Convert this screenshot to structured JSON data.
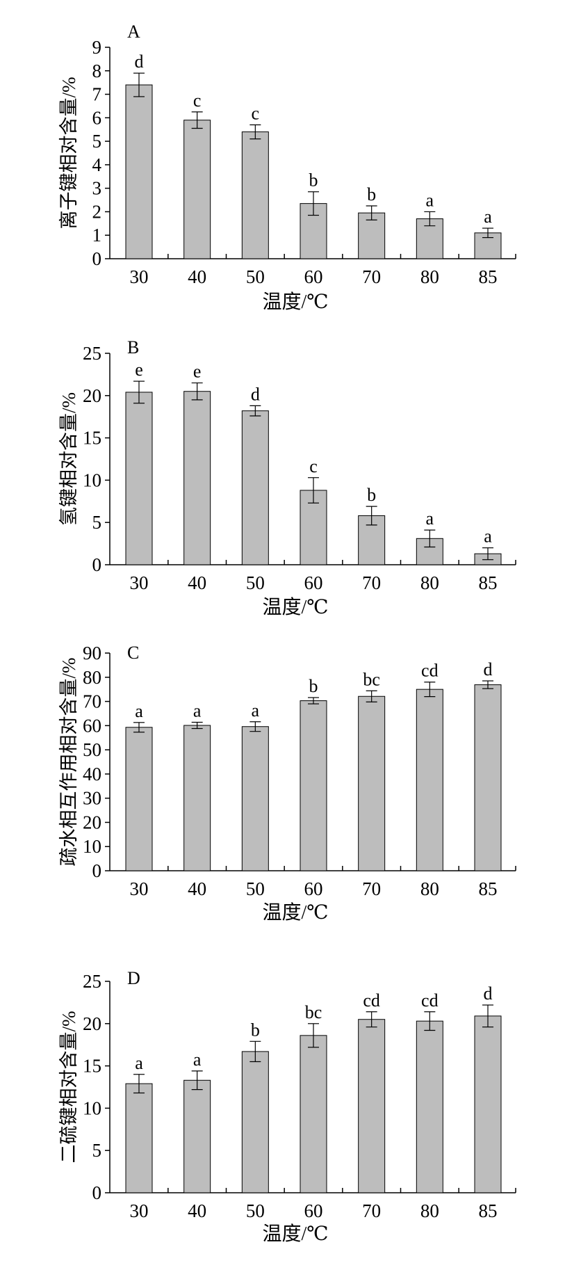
{
  "figure": {
    "background": "#ffffff",
    "bar_color": "#bdbdbd",
    "stroke_color": "#000000"
  },
  "chart_data": [
    {
      "type": "bar",
      "panel": "A",
      "categories": [
        "30",
        "40",
        "50",
        "60",
        "70",
        "80",
        "85"
      ],
      "values": [
        7.4,
        5.9,
        5.4,
        2.35,
        1.95,
        1.7,
        1.1
      ],
      "errors": [
        0.5,
        0.35,
        0.3,
        0.5,
        0.3,
        0.3,
        0.2
      ],
      "significance": [
        "d",
        "c",
        "c",
        "b",
        "b",
        "a",
        "a"
      ],
      "xlabel": "温度/℃",
      "ylabel": "离子键相对含量/%",
      "ylim": [
        0,
        9
      ],
      "yticks": [
        0,
        1,
        2,
        3,
        4,
        5,
        6,
        7,
        8,
        9
      ],
      "grid": false
    },
    {
      "type": "bar",
      "panel": "B",
      "categories": [
        "30",
        "40",
        "50",
        "60",
        "70",
        "80",
        "85"
      ],
      "values": [
        20.4,
        20.5,
        18.2,
        8.8,
        5.8,
        3.1,
        1.3
      ],
      "errors": [
        1.3,
        1.0,
        0.6,
        1.5,
        1.1,
        1.0,
        0.7
      ],
      "significance": [
        "e",
        "e",
        "d",
        "c",
        "b",
        "a",
        "a"
      ],
      "xlabel": "温度/℃",
      "ylabel": "氢键相对含量/%",
      "ylim": [
        0,
        25
      ],
      "yticks": [
        0,
        5,
        10,
        15,
        20,
        25
      ],
      "grid": false
    },
    {
      "type": "bar",
      "panel": "C",
      "categories": [
        "30",
        "40",
        "50",
        "60",
        "70",
        "80",
        "85"
      ],
      "values": [
        59.3,
        60.1,
        59.6,
        70.3,
        72.1,
        75.0,
        76.9
      ],
      "errors": [
        2.0,
        1.3,
        2.0,
        1.3,
        2.3,
        3.0,
        1.6
      ],
      "significance": [
        "a",
        "a",
        "a",
        "b",
        "bc",
        "cd",
        "d"
      ],
      "xlabel": "温度/℃",
      "ylabel": "疏水相互作用相对含量/%",
      "ylim": [
        0,
        90
      ],
      "yticks": [
        0,
        10,
        20,
        30,
        40,
        50,
        60,
        70,
        80,
        90
      ],
      "grid": false
    },
    {
      "type": "bar",
      "panel": "D",
      "categories": [
        "30",
        "40",
        "50",
        "60",
        "70",
        "80",
        "85"
      ],
      "values": [
        12.9,
        13.3,
        16.7,
        18.6,
        20.5,
        20.3,
        20.9
      ],
      "errors": [
        1.1,
        1.1,
        1.2,
        1.4,
        0.9,
        1.1,
        1.3
      ],
      "significance": [
        "a",
        "a",
        "b",
        "bc",
        "cd",
        "cd",
        "d"
      ],
      "xlabel": "温度/℃",
      "ylabel": "二硫键相对含量/%",
      "ylim": [
        0,
        25
      ],
      "yticks": [
        0,
        5,
        10,
        15,
        20,
        25
      ],
      "grid": false
    }
  ]
}
